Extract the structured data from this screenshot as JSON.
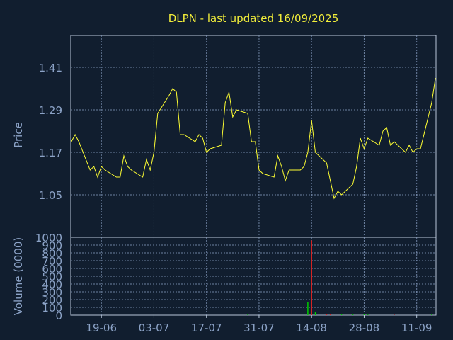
{
  "chart_data": [
    {
      "type": "line",
      "title": "DLPN - last updated 16/09/2025",
      "ylabel": "Price",
      "ylim": [
        0.93,
        1.5
      ],
      "yticks": [
        1.05,
        1.17,
        1.29,
        1.41
      ],
      "ytick_labels": [
        "1.05",
        "1.17",
        "1.29",
        "1.41"
      ],
      "x_labels": [
        "19-06",
        "03-07",
        "17-07",
        "31-07",
        "14-08",
        "28-08",
        "11-09"
      ],
      "series": [
        {
          "color": "#ffff33",
          "dates": [
            "2025-06-11",
            "2025-06-12",
            "2025-06-13",
            "2025-06-16",
            "2025-06-17",
            "2025-06-18",
            "2025-06-19",
            "2025-06-20",
            "2025-06-23",
            "2025-06-24",
            "2025-06-25",
            "2025-06-26",
            "2025-06-27",
            "2025-06-30",
            "2025-07-01",
            "2025-07-02",
            "2025-07-03",
            "2025-07-04",
            "2025-07-07",
            "2025-07-08",
            "2025-07-09",
            "2025-07-10",
            "2025-07-11",
            "2025-07-14",
            "2025-07-15",
            "2025-07-16",
            "2025-07-17",
            "2025-07-18",
            "2025-07-21",
            "2025-07-22",
            "2025-07-23",
            "2025-07-24",
            "2025-07-25",
            "2025-07-28",
            "2025-07-29",
            "2025-07-30",
            "2025-07-31",
            "2025-08-01",
            "2025-08-04",
            "2025-08-05",
            "2025-08-06",
            "2025-08-07",
            "2025-08-08",
            "2025-08-11",
            "2025-08-12",
            "2025-08-13",
            "2025-08-14",
            "2025-08-15",
            "2025-08-18",
            "2025-08-19",
            "2025-08-20",
            "2025-08-21",
            "2025-08-22",
            "2025-08-25",
            "2025-08-26",
            "2025-08-27",
            "2025-08-28",
            "2025-08-29",
            "2025-09-01",
            "2025-09-02",
            "2025-09-03",
            "2025-09-04",
            "2025-09-05",
            "2025-09-08",
            "2025-09-09",
            "2025-09-10",
            "2025-09-11",
            "2025-09-12",
            "2025-09-15",
            "2025-09-16"
          ],
          "values": [
            1.2,
            1.22,
            1.2,
            1.12,
            1.13,
            1.1,
            1.13,
            1.12,
            1.1,
            1.1,
            1.16,
            1.13,
            1.12,
            1.1,
            1.15,
            1.12,
            1.17,
            1.28,
            1.33,
            1.35,
            1.34,
            1.22,
            1.22,
            1.2,
            1.22,
            1.21,
            1.17,
            1.18,
            1.19,
            1.31,
            1.34,
            1.27,
            1.29,
            1.28,
            1.2,
            1.2,
            1.12,
            1.11,
            1.1,
            1.16,
            1.13,
            1.09,
            1.12,
            1.12,
            1.13,
            1.17,
            1.26,
            1.17,
            1.14,
            1.09,
            1.04,
            1.06,
            1.05,
            1.08,
            1.13,
            1.21,
            1.18,
            1.21,
            1.19,
            1.23,
            1.24,
            1.19,
            1.2,
            1.17,
            1.19,
            1.17,
            1.18,
            1.18,
            1.31,
            1.38
          ]
        }
      ]
    },
    {
      "type": "bar",
      "ylabel": "Volume (0000)",
      "ylim": [
        0,
        1000
      ],
      "yticks": [
        0,
        100,
        200,
        300,
        400,
        500,
        600,
        700,
        800,
        900,
        1000
      ],
      "ytick_labels": [
        "0",
        "100",
        "200",
        "300",
        "400",
        "500",
        "600",
        "700",
        "800",
        "900",
        "1000"
      ],
      "up_color": "#00cc00",
      "down_color": "#dd2222",
      "bars": [
        {
          "date": "2025-07-28",
          "value": 8,
          "dir": "up"
        },
        {
          "date": "2025-08-13",
          "value": 165,
          "dir": "up"
        },
        {
          "date": "2025-08-14",
          "value": 960,
          "dir": "down"
        },
        {
          "date": "2025-08-15",
          "value": 45,
          "dir": "up"
        },
        {
          "date": "2025-08-18",
          "value": 12,
          "dir": "down"
        },
        {
          "date": "2025-08-19",
          "value": 10,
          "dir": "down"
        },
        {
          "date": "2025-08-22",
          "value": 15,
          "dir": "up"
        },
        {
          "date": "2025-08-25",
          "value": 8,
          "dir": "up"
        },
        {
          "date": "2025-08-28",
          "value": 10,
          "dir": "up"
        },
        {
          "date": "2025-08-29",
          "value": 6,
          "dir": "up"
        },
        {
          "date": "2025-09-05",
          "value": 6,
          "dir": "down"
        },
        {
          "date": "2025-09-15",
          "value": 8,
          "dir": "up"
        }
      ]
    }
  ]
}
